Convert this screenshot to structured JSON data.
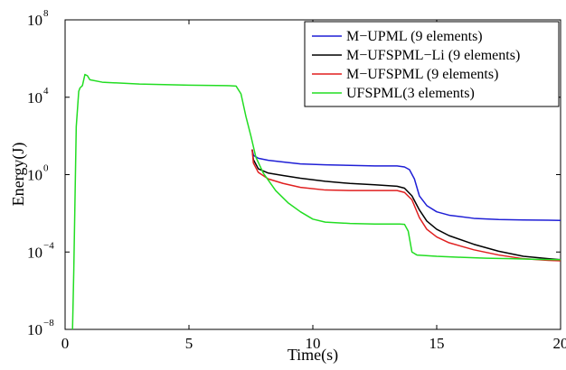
{
  "chart_data": {
    "type": "line",
    "title": "",
    "xlabel": "Time(s)",
    "ylabel": "Energy(J)",
    "xlim": [
      0,
      20
    ],
    "ylim": [
      1e-08,
      100000000.0
    ],
    "yscale": "log",
    "grid": false,
    "legend_position": "top-right",
    "x_ticks": [
      {
        "value": 0,
        "label": "0"
      },
      {
        "value": 5,
        "label": "5"
      },
      {
        "value": 10,
        "label": "10"
      },
      {
        "value": 15,
        "label": "15"
      },
      {
        "value": 20,
        "label": "20"
      }
    ],
    "y_ticks": [
      {
        "value": 1e-08,
        "base": "10",
        "exp": "−8"
      },
      {
        "value": 0.0001,
        "base": "10",
        "exp": "−4"
      },
      {
        "value": 1,
        "base": "10",
        "exp": "0"
      },
      {
        "value": 10000.0,
        "base": "10",
        "exp": "4"
      },
      {
        "value": 100000000.0,
        "base": "10",
        "exp": "8"
      }
    ],
    "series": [
      {
        "name": "M−UPML (9 elements)",
        "color": "#1f1fd6",
        "points": [
          [
            7.55,
            20
          ],
          [
            7.6,
            10
          ],
          [
            7.8,
            7
          ],
          [
            8.2,
            5.5
          ],
          [
            8.8,
            4.5
          ],
          [
            9.5,
            3.6
          ],
          [
            10.5,
            3.2
          ],
          [
            11.5,
            3.0
          ],
          [
            12.5,
            2.8
          ],
          [
            13.4,
            2.8
          ],
          [
            13.7,
            2.5
          ],
          [
            13.9,
            1.8
          ],
          [
            14.1,
            0.6
          ],
          [
            14.3,
            0.08
          ],
          [
            14.6,
            0.025
          ],
          [
            15.0,
            0.012
          ],
          [
            15.5,
            0.008
          ],
          [
            16.5,
            0.0055
          ],
          [
            17.5,
            0.0048
          ],
          [
            18.5,
            0.0045
          ],
          [
            19.5,
            0.0044
          ],
          [
            20,
            0.0043
          ]
        ]
      },
      {
        "name": "M−UFSPML−Li (9 elements)",
        "color": "#000000",
        "points": [
          [
            7.55,
            20
          ],
          [
            7.6,
            6
          ],
          [
            7.8,
            2.0
          ],
          [
            8.2,
            1.2
          ],
          [
            8.8,
            0.9
          ],
          [
            9.5,
            0.65
          ],
          [
            10.5,
            0.45
          ],
          [
            11.5,
            0.35
          ],
          [
            12.5,
            0.3
          ],
          [
            13.4,
            0.25
          ],
          [
            13.7,
            0.2
          ],
          [
            14.0,
            0.08
          ],
          [
            14.3,
            0.015
          ],
          [
            14.6,
            0.004
          ],
          [
            15.0,
            0.0015
          ],
          [
            15.5,
            0.0007
          ],
          [
            16.5,
            0.00025
          ],
          [
            17.5,
            0.00011
          ],
          [
            18.5,
            6e-05
          ],
          [
            19.5,
            4.5e-05
          ],
          [
            20,
            4e-05
          ]
        ]
      },
      {
        "name": "M−UFSPML (9 elements)",
        "color": "#e01f1f",
        "points": [
          [
            7.55,
            20
          ],
          [
            7.6,
            4
          ],
          [
            7.8,
            1.3
          ],
          [
            8.2,
            0.6
          ],
          [
            8.8,
            0.35
          ],
          [
            9.5,
            0.22
          ],
          [
            10.5,
            0.16
          ],
          [
            11.5,
            0.15
          ],
          [
            12.5,
            0.15
          ],
          [
            13.4,
            0.15
          ],
          [
            13.7,
            0.12
          ],
          [
            14.0,
            0.05
          ],
          [
            14.3,
            0.006
          ],
          [
            14.6,
            0.0015
          ],
          [
            15.0,
            0.0006
          ],
          [
            15.5,
            0.0003
          ],
          [
            16.5,
            0.00013
          ],
          [
            17.5,
            7e-05
          ],
          [
            18.5,
            4.5e-05
          ],
          [
            19.5,
            3.7e-05
          ],
          [
            20,
            3.5e-05
          ]
        ]
      },
      {
        "name": "UFSPML(3 elements)",
        "color": "#22dd22",
        "points": [
          [
            0.3,
            1e-08
          ],
          [
            0.35,
            1e-05
          ],
          [
            0.45,
            300
          ],
          [
            0.55,
            20000
          ],
          [
            0.6,
            30000
          ],
          [
            0.7,
            40000
          ],
          [
            0.8,
            150000
          ],
          [
            0.9,
            130000
          ],
          [
            1.0,
            80000
          ],
          [
            1.5,
            60000
          ],
          [
            3.0,
            48000
          ],
          [
            5.0,
            42000
          ],
          [
            6.5,
            40000
          ],
          [
            6.9,
            38000
          ],
          [
            7.1,
            15000
          ],
          [
            7.3,
            1000
          ],
          [
            7.5,
            100
          ],
          [
            7.7,
            8
          ],
          [
            8.0,
            1.2
          ],
          [
            8.5,
            0.15
          ],
          [
            9.0,
            0.035
          ],
          [
            9.5,
            0.012
          ],
          [
            10.0,
            0.005
          ],
          [
            10.5,
            0.0035
          ],
          [
            11.5,
            0.003
          ],
          [
            12.5,
            0.0028
          ],
          [
            13.5,
            0.0028
          ],
          [
            13.7,
            0.0027
          ],
          [
            13.85,
            0.0012
          ],
          [
            14.0,
            0.0001
          ],
          [
            14.2,
            7e-05
          ],
          [
            15.0,
            6e-05
          ],
          [
            16.0,
            5.3e-05
          ],
          [
            17.0,
            4.8e-05
          ],
          [
            18.0,
            4.5e-05
          ],
          [
            19.0,
            4.2e-05
          ],
          [
            20,
            4e-05
          ]
        ]
      }
    ]
  }
}
